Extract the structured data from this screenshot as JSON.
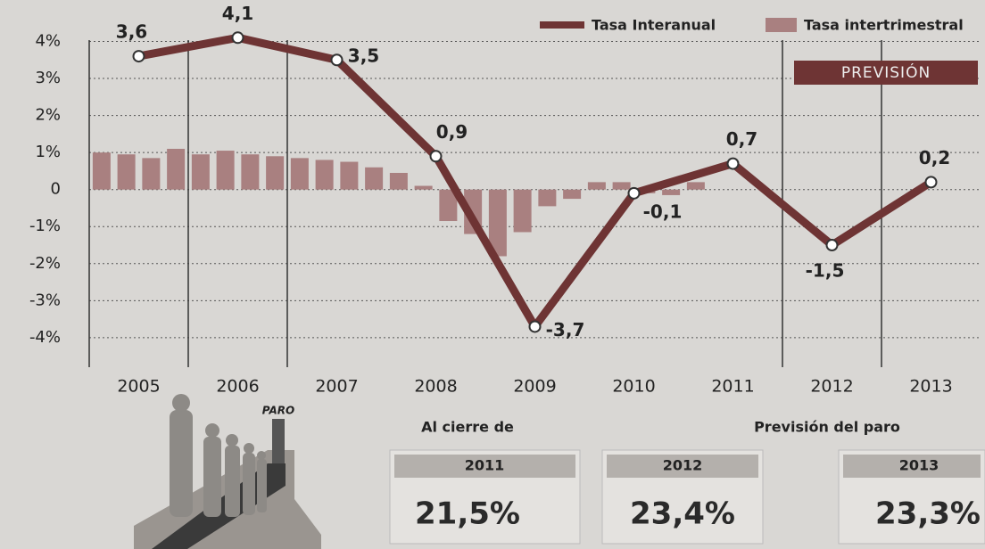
{
  "chart_data": {
    "type": "line",
    "categories": [
      "2005",
      "2006",
      "2007",
      "2008",
      "2009",
      "2010",
      "2011",
      "2012",
      "2013"
    ],
    "series": [
      {
        "name": "Tasa Interanual",
        "color": "#6e3434",
        "values": [
          3.6,
          4.1,
          3.5,
          0.9,
          -3.7,
          -0.1,
          0.7,
          -1.5,
          0.2
        ],
        "value_labels": [
          "3,6",
          "4,1",
          "3,5",
          "0,9",
          "-3,7",
          "-0,1",
          "0,7",
          "-1,5",
          "0,2"
        ]
      }
    ],
    "bar_series": {
      "name": "Tasa intertrimestral",
      "color": "#a98080",
      "values": [
        1.0,
        0.95,
        0.85,
        1.1,
        0.95,
        1.05,
        0.95,
        0.9,
        0.85,
        0.8,
        0.75,
        0.6,
        0.45,
        0.1,
        -0.85,
        -1.2,
        -1.8,
        -1.15,
        -0.45,
        -0.25,
        0.2,
        0.2,
        -0.1,
        -0.15,
        0.2
      ]
    },
    "ylim": [
      -4.7,
      4.3
    ],
    "yticks": [
      {
        "value": 4,
        "label": "4%"
      },
      {
        "value": 3,
        "label": "3%"
      },
      {
        "value": 2,
        "label": "2%"
      },
      {
        "value": 1,
        "label": "1%"
      },
      0,
      {
        "value": -1,
        "label": "-1%"
      },
      {
        "value": -2,
        "label": "-2%"
      },
      {
        "value": -3,
        "label": "-3%"
      },
      {
        "value": -4,
        "label": "-4%"
      }
    ],
    "grid": true,
    "legend": "top-right",
    "forecast_label": "PREVISIÓN"
  },
  "bottom": {
    "sign": "PARO",
    "closing_label": "Al cierre de",
    "forecast_label": "Previsión del paro",
    "boxes": [
      {
        "year": "2011",
        "value": "21,5%"
      },
      {
        "year": "2012",
        "value": "23,4%"
      },
      {
        "year": "2013",
        "value": "23,3%"
      }
    ]
  }
}
